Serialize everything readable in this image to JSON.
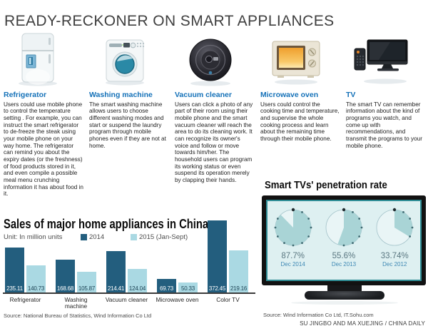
{
  "page": {
    "title": "READY-RECKONER ON SMART APPLIANCES"
  },
  "appliances": [
    {
      "name": "Refrigerator",
      "icon": "refrigerator-icon",
      "description": "Users could use mobile phone to control the temperature setting . For example, you can instruct the smart refrigerator to de-freeze the steak using your mobile phone on your way home. The refrigerator can remind you about the expiry dates (or the freshness) of food products stored in it, and even compile a possible meal menu crunching information it has about food in it."
    },
    {
      "name": "Washing machine",
      "icon": "washing-machine-icon",
      "description": "The smart washing machine allows users to choose different washing modes and start or suspend the laundry program through mobile phones even if they are not at home."
    },
    {
      "name": "Vacuum cleaner",
      "icon": "vacuum-cleaner-icon",
      "description": "Users can click a photo of any part of their room using their mobile phone and the smart vacuum cleaner will reach the area to do its cleaning work. It can recognize its owner's voice and follow or move towards him/her. The household users can program its working status or even suspend its operation merely by clapping their hands."
    },
    {
      "name": "Microwave oven",
      "icon": "microwave-oven-icon",
      "description": "Users could control the cooking time and temperature, and supervise the whole cooking process and learn about the remaining time through their mobile phone."
    },
    {
      "name": "TV",
      "icon": "tv-icon",
      "description": "The smart TV can remember information about the kind of programs you watch, and come up with recommendations, and transmit the programs to your mobile phone."
    }
  ],
  "chart_data": [
    {
      "type": "bar",
      "title": "Sales of major home appliances in China",
      "unit_label": "Unit: In million units",
      "categories": [
        "Refrigerator",
        "Washing machine",
        "Vacuum cleaner",
        "Microwave oven",
        "Color TV"
      ],
      "series": [
        {
          "name": "2014",
          "color": "#235e7e",
          "label_color": "#ffffff",
          "values": [
            235.11,
            168.68,
            214.41,
            69.73,
            372.45
          ]
        },
        {
          "name": "2015 (Jan-Sept)",
          "color": "#aad9e3",
          "label_color": "#1d4354",
          "values": [
            140.73,
            105.87,
            124.04,
            50.33,
            219.16
          ]
        }
      ],
      "ylim": [
        0,
        380
      ],
      "grid": false,
      "legend_position": "top",
      "source": "Source: National Bureau of Statistics, Wind Information Co Ltd"
    },
    {
      "type": "pie",
      "title": "Smart TVs' penetration rate",
      "slices": [
        {
          "label": "Dec 2014",
          "value": 87.7,
          "display": "87.7%"
        },
        {
          "label": "Dec 2013",
          "value": 55.6,
          "display": "55.6%"
        },
        {
          "label": "Dec 2012",
          "value": 33.74,
          "display": "33.74%"
        }
      ],
      "fill_color": "#a9d4d6",
      "source": "Source: Wind Information Co Ltd, IT.Sohu.com"
    }
  ],
  "credit": "SU JINGBO AND MA XUEJING / CHINA DAILY"
}
